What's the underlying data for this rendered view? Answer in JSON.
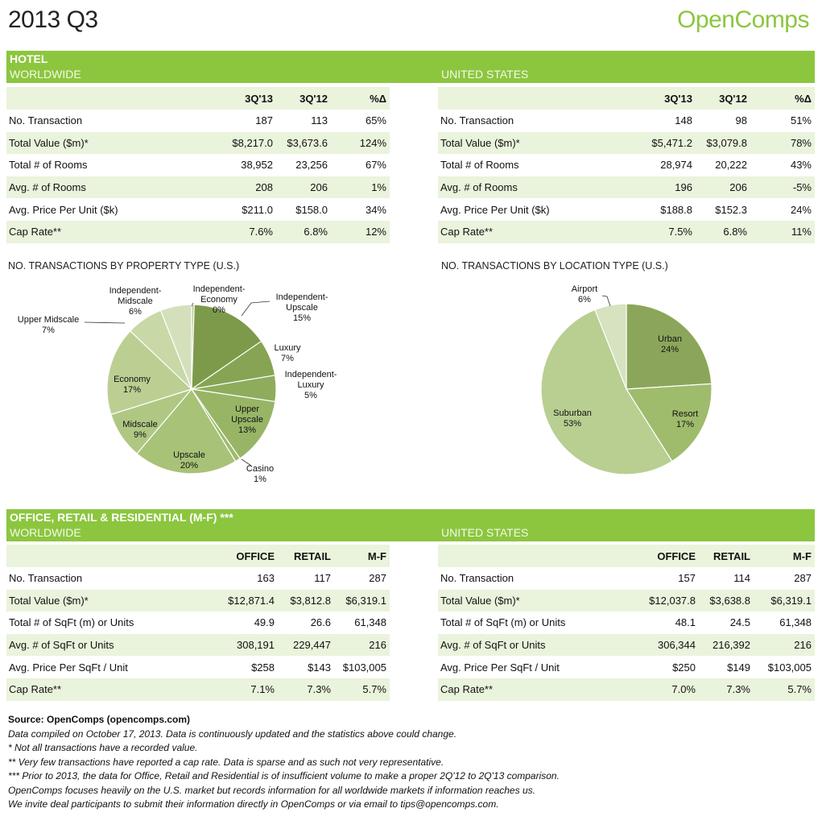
{
  "header": {
    "title": "2013 Q3",
    "brand": "OpenComps"
  },
  "hotel": {
    "section": "HOTEL",
    "worldwide": {
      "label": "WORLDWIDE",
      "cols": [
        "3Q'13",
        "3Q'12",
        "%Δ"
      ],
      "rows": [
        {
          "label": "No. Transaction",
          "values": [
            "187",
            "113",
            "65%"
          ]
        },
        {
          "label": "Total Value ($m)*",
          "values": [
            "$8,217.0",
            "$3,673.6",
            "124%"
          ]
        },
        {
          "label": "Total # of Rooms",
          "values": [
            "38,952",
            "23,256",
            "67%"
          ]
        },
        {
          "label": "Avg. # of Rooms",
          "values": [
            "208",
            "206",
            "1%"
          ]
        },
        {
          "label": "Avg. Price Per Unit ($k)",
          "values": [
            "$211.0",
            "$158.0",
            "34%"
          ]
        },
        {
          "label": "Cap Rate**",
          "values": [
            "7.6%",
            "6.8%",
            "12%"
          ]
        }
      ]
    },
    "us": {
      "label": "UNITED STATES",
      "cols": [
        "3Q'13",
        "3Q'12",
        "%Δ"
      ],
      "rows": [
        {
          "label": "No. Transaction",
          "values": [
            "148",
            "98",
            "51%"
          ]
        },
        {
          "label": "Total Value ($m)*",
          "values": [
            "$5,471.2",
            "$3,079.8",
            "78%"
          ]
        },
        {
          "label": "Total # of Rooms",
          "values": [
            "28,974",
            "20,222",
            "43%"
          ]
        },
        {
          "label": "Avg. # of Rooms",
          "values": [
            "196",
            "206",
            "-5%"
          ]
        },
        {
          "label": "Avg. Price Per Unit ($k)",
          "values": [
            "$188.8",
            "$152.3",
            "24%"
          ]
        },
        {
          "label": "Cap Rate**",
          "values": [
            "7.5%",
            "6.8%",
            "11%"
          ]
        }
      ]
    }
  },
  "chart_data": [
    {
      "type": "pie",
      "title": "NO. TRANSACTIONS BY PROPERTY TYPE (U.S.)",
      "slices": [
        {
          "label": "Independent-Economy",
          "lines": [
            "Independent-",
            "Economy"
          ],
          "pct": "0%",
          "value": 0.5,
          "color": "#b7cc94"
        },
        {
          "label": "Independent-Upscale",
          "lines": [
            "Independent-",
            "Upscale"
          ],
          "pct": "15%",
          "value": 15,
          "color": "#7d9a4b"
        },
        {
          "label": "Luxury",
          "lines": [
            "Luxury"
          ],
          "pct": "7%",
          "value": 7,
          "color": "#86a453"
        },
        {
          "label": "Independent-Luxury",
          "lines": [
            "Independent-",
            "Luxury"
          ],
          "pct": "5%",
          "value": 5,
          "color": "#8eac5c"
        },
        {
          "label": "Upper Upscale",
          "lines": [
            "Upper",
            "Upscale"
          ],
          "pct": "13%",
          "value": 13,
          "color": "#98b566"
        },
        {
          "label": "Casino",
          "lines": [
            "Casino"
          ],
          "pct": "1%",
          "value": 1,
          "color": "#a0ba6e"
        },
        {
          "label": "Upscale",
          "lines": [
            "Upscale"
          ],
          "pct": "20%",
          "value": 20,
          "color": "#a8c277"
        },
        {
          "label": "Midscale",
          "lines": [
            "Midscale"
          ],
          "pct": "9%",
          "value": 9,
          "color": "#b0c784"
        },
        {
          "label": "Economy",
          "lines": [
            "Economy"
          ],
          "pct": "17%",
          "value": 17,
          "color": "#bccf93"
        },
        {
          "label": "Upper Midscale",
          "lines": [
            "Upper Midscale"
          ],
          "pct": "7%",
          "value": 7,
          "color": "#c8d8a6"
        },
        {
          "label": "Independent-Midscale",
          "lines": [
            "Independent-",
            "Midscale"
          ],
          "pct": "6%",
          "value": 6,
          "color": "#d4e0bb"
        }
      ]
    },
    {
      "type": "pie",
      "title": "NO. TRANSACTIONS BY LOCATION TYPE (U.S.)",
      "slices": [
        {
          "label": "Urban",
          "lines": [
            "Urban"
          ],
          "pct": "24%",
          "value": 24,
          "color": "#8ba65a"
        },
        {
          "label": "Resort",
          "lines": [
            "Resort"
          ],
          "pct": "17%",
          "value": 17,
          "color": "#9fbb6c"
        },
        {
          "label": "Suburban",
          "lines": [
            "Suburban"
          ],
          "pct": "53%",
          "value": 53,
          "color": "#b8cf91"
        },
        {
          "label": "Airport",
          "lines": [
            "Airport"
          ],
          "pct": "6%",
          "value": 6,
          "color": "#d6e2c0"
        }
      ]
    }
  ],
  "office": {
    "section": "OFFICE, RETAIL & RESIDENTIAL (M-F) ***",
    "worldwide": {
      "label": "WORLDWIDE",
      "cols": [
        "OFFICE",
        "RETAIL",
        "M-F"
      ],
      "rows": [
        {
          "label": "No. Transaction",
          "values": [
            "163",
            "117",
            "287"
          ]
        },
        {
          "label": "Total Value ($m)*",
          "values": [
            "$12,871.4",
            "$3,812.8",
            "$6,319.1"
          ]
        },
        {
          "label": "Total # of SqFt (m) or Units",
          "values": [
            "49.9",
            "26.6",
            "61,348"
          ]
        },
        {
          "label": "Avg. # of SqFt or Units",
          "values": [
            "308,191",
            "229,447",
            "216"
          ]
        },
        {
          "label": "Avg. Price Per SqFt / Unit",
          "values": [
            "$258",
            "$143",
            "$103,005"
          ]
        },
        {
          "label": "Cap Rate**",
          "values": [
            "7.1%",
            "7.3%",
            "5.7%"
          ]
        }
      ]
    },
    "us": {
      "label": "UNITED STATES",
      "cols": [
        "OFFICE",
        "RETAIL",
        "M-F"
      ],
      "rows": [
        {
          "label": "No. Transaction",
          "values": [
            "157",
            "114",
            "287"
          ]
        },
        {
          "label": "Total Value ($m)*",
          "values": [
            "$12,037.8",
            "$3,638.8",
            "$6,319.1"
          ]
        },
        {
          "label": "Total # of SqFt (m) or Units",
          "values": [
            "48.1",
            "24.5",
            "61,348"
          ]
        },
        {
          "label": "Avg. # of SqFt or Units",
          "values": [
            "306,344",
            "216,392",
            "216"
          ]
        },
        {
          "label": "Avg. Price Per SqFt / Unit",
          "values": [
            "$250",
            "$149",
            "$103,005"
          ]
        },
        {
          "label": "Cap Rate**",
          "values": [
            "7.0%",
            "7.3%",
            "5.7%"
          ]
        }
      ]
    }
  },
  "footer": {
    "source": "Source: OpenComps (opencomps.com)",
    "lines": [
      "Data compiled on October 17, 2013. Data is continuously updated and the statistics above could change.",
      "* Not all transactions have a recorded value.",
      "** Very few transactions have reported a cap rate. Data is sparse and as such not very representative.",
      "*** Prior to 2013, the data for Office, Retail and Residential is of insufficient volume to make a proper 2Q'12 to 2Q'13 comparison.",
      "OpenComps focuses heavily on the U.S. market but records information for all worldwide markets if information reaches us.",
      "We invite deal participants to submit their information directly in OpenComps or via email to tips@opencomps.com."
    ]
  }
}
